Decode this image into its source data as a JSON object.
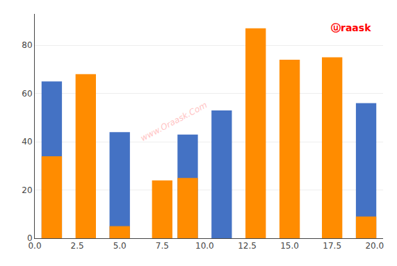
{
  "chart_data": {
    "type": "bar",
    "x": [
      1.0,
      3.0,
      5.0,
      7.5,
      9.0,
      11.0,
      13.0,
      15.0,
      17.5,
      19.5
    ],
    "series": [
      {
        "color": "#4472C4",
        "values": [
          65,
          0,
          44,
          0,
          43,
          53,
          0,
          0,
          0,
          56
        ]
      },
      {
        "color": "#FF8C00",
        "values": [
          34,
          68,
          5,
          24,
          25,
          0,
          87,
          74,
          75,
          9
        ]
      }
    ],
    "xlim": [
      0.0,
      20.5
    ],
    "xticks": [
      {
        "value": 0.0,
        "label": "0.0"
      },
      2.5,
      {
        "value": 5.0,
        "label": "5.0"
      },
      7.5,
      {
        "value": 10.0,
        "label": "10.0"
      },
      12.5,
      {
        "value": 15.0,
        "label": "15.0"
      },
      17.5,
      {
        "value": 20.0,
        "label": "20.0"
      }
    ],
    "ylim": [
      0,
      93
    ],
    "yticks": [
      0,
      20,
      40,
      60,
      80
    ],
    "grid": true,
    "annotations": [
      "www.Oraask.Com",
      "ⓤraask"
    ]
  }
}
